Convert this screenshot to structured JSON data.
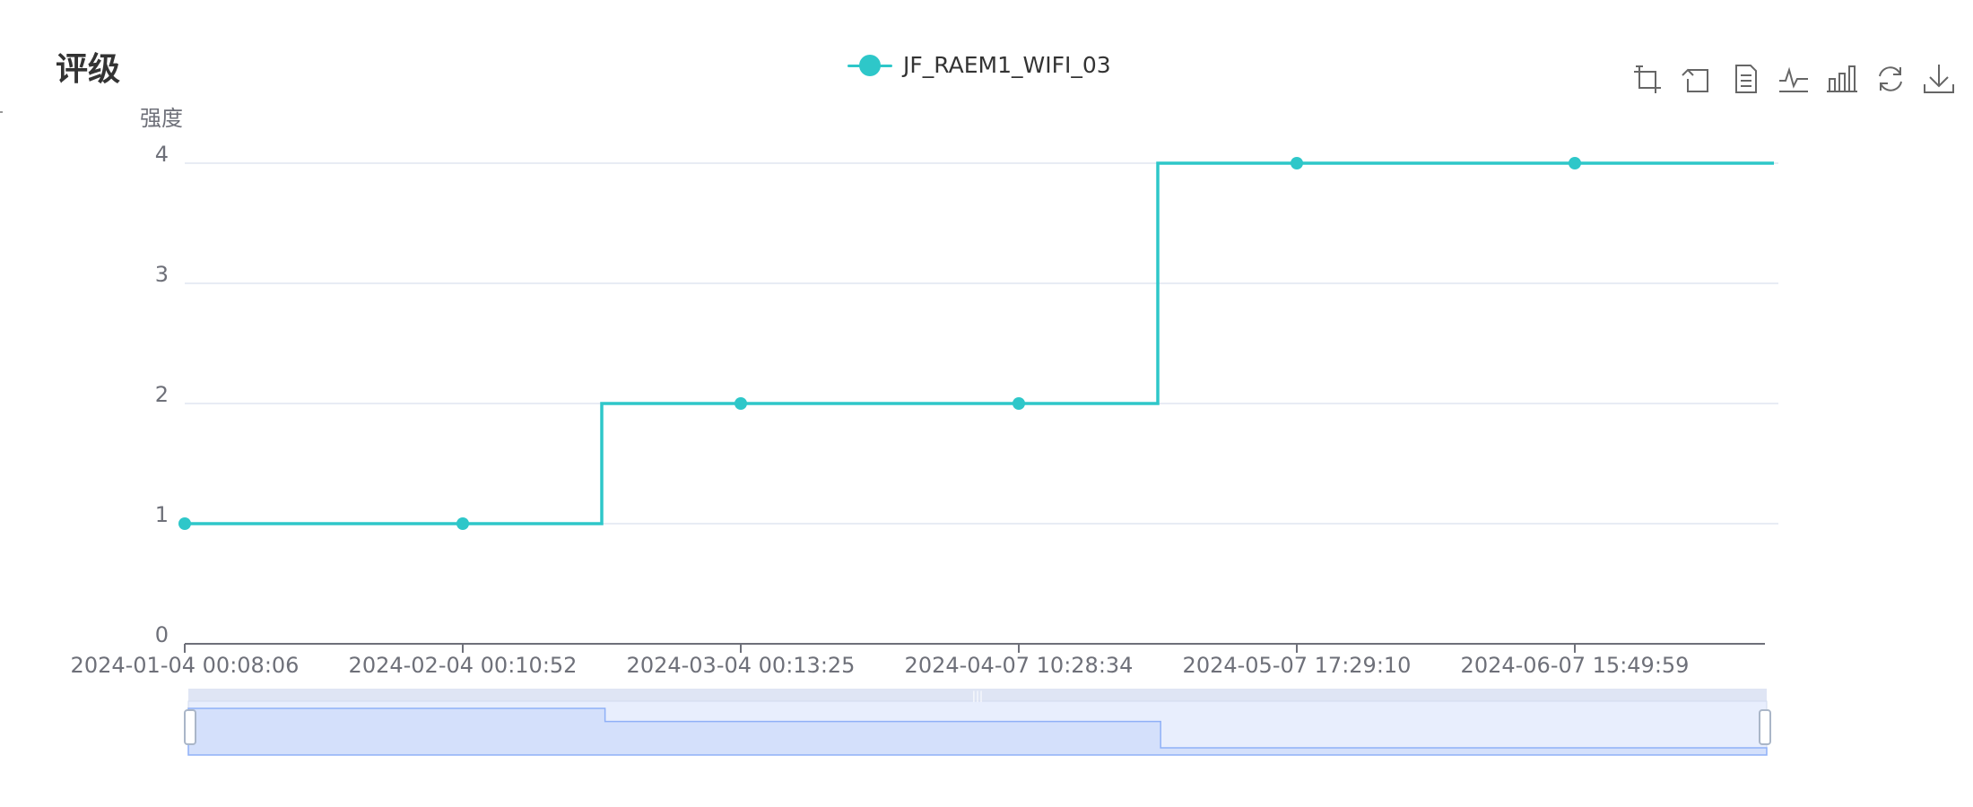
{
  "title": "评级",
  "legend": {
    "series_name": "JF_RAEM1_WIFI_03",
    "color": "#2ec7c9"
  },
  "toolbox": [
    {
      "name": "zoom-icon"
    },
    {
      "name": "zoom-reset-icon"
    },
    {
      "name": "data-view-icon"
    },
    {
      "name": "line-chart-icon"
    },
    {
      "name": "bar-chart-icon"
    },
    {
      "name": "restore-icon"
    },
    {
      "name": "download-icon"
    }
  ],
  "colors": {
    "series": "#2ec7c9",
    "gridline": "#e0e6f1",
    "axis": "#6e7079",
    "tick_label": "#6e7079",
    "zoom_fill": "#d4e0fb",
    "zoom_bg": "#e8eefd",
    "zoom_line": "#8fb0f7"
  },
  "chart_data": {
    "type": "line",
    "step": "middle",
    "ylabel": "强度",
    "ylim": [
      0,
      4
    ],
    "yticks": [
      "0",
      "1",
      "2",
      "3",
      "4"
    ],
    "grid": true,
    "x_tick_labels": [
      "2024-01-04 00:08:06",
      "2024-02-04 00:10:52",
      "2024-03-04 00:13:25",
      "2024-04-07 10:28:34",
      "2024-05-07 17:29:10",
      "2024-06-07 15:49:59"
    ],
    "series": [
      {
        "name": "JF_RAEM1_WIFI_03",
        "x": [
          "2024-01-04 00:08:06",
          "2024-02-04 00:10:52",
          "2024-03-04 00:13:25",
          "2024-04-07 10:28:34",
          "2024-05-07 17:29:10",
          "2024-06-07 15:49:59"
        ],
        "values": [
          1,
          1,
          2,
          2,
          4,
          4
        ]
      }
    ],
    "data_zoom": {
      "start": 0,
      "end": 100
    }
  }
}
